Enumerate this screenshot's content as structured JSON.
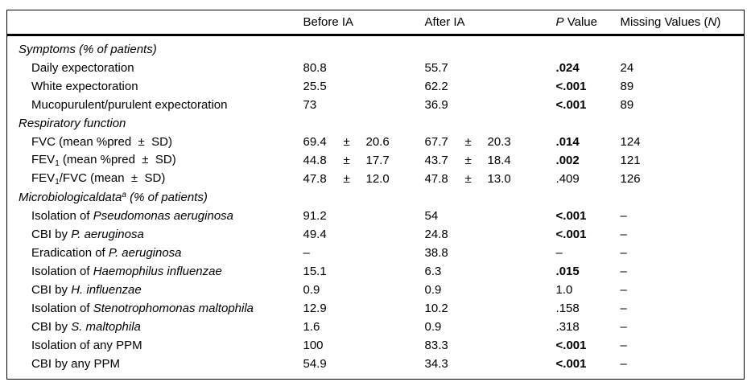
{
  "colors": {
    "text": "#000000",
    "background": "#ffffff",
    "border": "#000000"
  },
  "table": {
    "plus_minus": "±",
    "columns": {
      "label": "",
      "before": "Before IA",
      "after": "After IA",
      "p_value": [
        {
          "t": "P",
          "s": "i"
        },
        {
          "t": " Value"
        }
      ],
      "missing": [
        {
          "t": "Missing Values ("
        },
        {
          "t": "N",
          "s": "i"
        },
        {
          "t": ")"
        }
      ]
    },
    "rows": [
      {
        "type": "section",
        "label": [
          {
            "t": "Symptoms (% of patients)",
            "s": "i"
          }
        ]
      },
      {
        "type": "item",
        "label": [
          {
            "t": "Daily expectoration"
          }
        ],
        "before": "80.8",
        "after": "55.7",
        "p": ".024",
        "p_bold": true,
        "missing": "24"
      },
      {
        "type": "item",
        "label": [
          {
            "t": "White expectoration"
          }
        ],
        "before": "25.5",
        "after": "62.2",
        "p": "<.001",
        "p_bold": true,
        "missing": "89"
      },
      {
        "type": "item",
        "label": [
          {
            "t": "Mucopurulent/purulent expectoration"
          }
        ],
        "before": "73",
        "after": "36.9",
        "p": "<.001",
        "p_bold": true,
        "missing": "89"
      },
      {
        "type": "section",
        "label": [
          {
            "t": "Respiratory function",
            "s": "i"
          }
        ]
      },
      {
        "type": "item",
        "label": [
          {
            "t": "FVC (mean %pred  ±  SD)"
          }
        ],
        "before": "69.4",
        "before_sd": "20.6",
        "after": "67.7",
        "after_sd": "20.3",
        "p": ".014",
        "p_bold": true,
        "missing": "124"
      },
      {
        "type": "item",
        "label": [
          {
            "t": "FEV"
          },
          {
            "t": "1",
            "s": "sub"
          },
          {
            "t": " (mean %pred  ±  SD)"
          }
        ],
        "before": "44.8",
        "before_sd": "17.7",
        "after": "43.7",
        "after_sd": "18.4",
        "p": ".002",
        "p_bold": true,
        "missing": "121"
      },
      {
        "type": "item",
        "label": [
          {
            "t": "FEV"
          },
          {
            "t": "1",
            "s": "sub"
          },
          {
            "t": "/FVC (mean  ±  SD)"
          }
        ],
        "before": "47.8",
        "before_sd": "12.0",
        "after": "47.8",
        "after_sd": "13.0",
        "p": ".409",
        "p_bold": false,
        "missing": "126"
      },
      {
        "type": "section",
        "label": [
          {
            "t": "Microbiologicaldata",
            "s": "i"
          },
          {
            "t": "a",
            "s": "i sup"
          },
          {
            "t": " (% of patients)",
            "s": "i"
          }
        ]
      },
      {
        "type": "item",
        "label": [
          {
            "t": "Isolation of "
          },
          {
            "t": "Pseudomonas aeruginosa",
            "s": "i"
          }
        ],
        "before": "91.2",
        "after": "54",
        "p": "<.001",
        "p_bold": true,
        "missing": "–"
      },
      {
        "type": "item",
        "label": [
          {
            "t": "CBI by "
          },
          {
            "t": "P. aeruginosa",
            "s": "i"
          }
        ],
        "before": "49.4",
        "after": "24.8",
        "p": "<.001",
        "p_bold": true,
        "missing": "–"
      },
      {
        "type": "item",
        "label": [
          {
            "t": "Eradication of "
          },
          {
            "t": "P. aeruginosa",
            "s": "i"
          }
        ],
        "before": "–",
        "after": "38.8",
        "p": "–",
        "p_bold": false,
        "missing": "–"
      },
      {
        "type": "item",
        "label": [
          {
            "t": "Isolation of "
          },
          {
            "t": "Haemophilus influenzae",
            "s": "i"
          }
        ],
        "before": "15.1",
        "after": "6.3",
        "p": ".015",
        "p_bold": true,
        "missing": "–"
      },
      {
        "type": "item",
        "label": [
          {
            "t": "CBI by "
          },
          {
            "t": "H. influenzae",
            "s": "i"
          }
        ],
        "before": "0.9",
        "after": "0.9",
        "p": "1.0",
        "p_bold": false,
        "missing": "–"
      },
      {
        "type": "item",
        "label": [
          {
            "t": "Isolation of "
          },
          {
            "t": "Stenotrophomonas maltophila",
            "s": "i"
          }
        ],
        "before": "12.9",
        "after": "10.2",
        "p": ".158",
        "p_bold": false,
        "missing": "–"
      },
      {
        "type": "item",
        "label": [
          {
            "t": "CBI by "
          },
          {
            "t": "S. maltophila",
            "s": "i"
          }
        ],
        "before": "1.6",
        "after": "0.9",
        "p": ".318",
        "p_bold": false,
        "missing": "–"
      },
      {
        "type": "item",
        "label": [
          {
            "t": "Isolation of any PPM"
          }
        ],
        "before": "100",
        "after": "83.3",
        "p": "<.001",
        "p_bold": true,
        "missing": "–"
      },
      {
        "type": "item",
        "label": [
          {
            "t": "CBI by any PPM"
          }
        ],
        "before": "54.9",
        "after": "34.3",
        "p": "<.001",
        "p_bold": true,
        "missing": "–"
      }
    ]
  }
}
